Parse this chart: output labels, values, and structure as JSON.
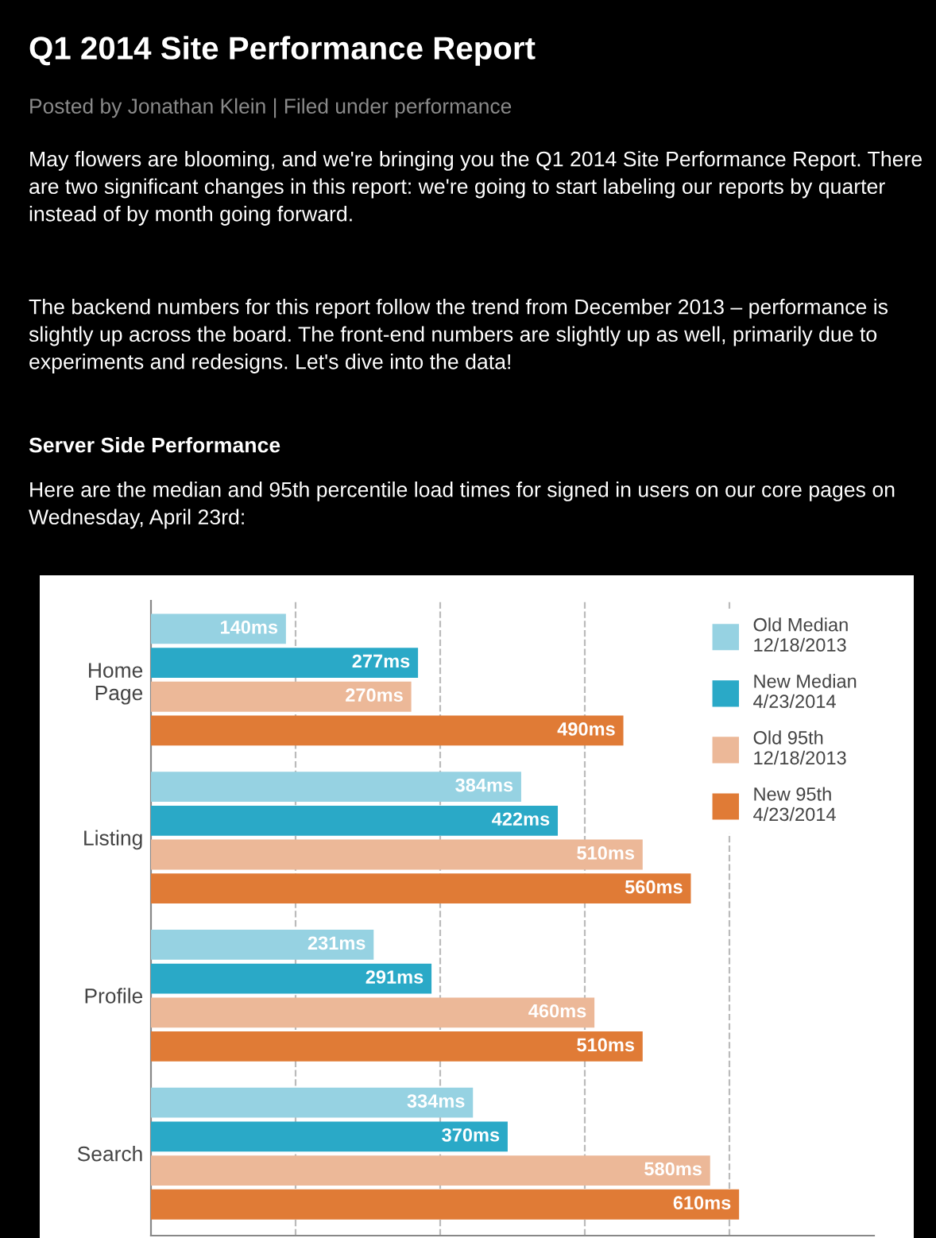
{
  "chart_data": {
    "type": "bar",
    "orientation": "horizontal",
    "title": "Q1 2014 Site Performance Report",
    "subtitle": "Posted by Jonathan Klein | Filed under performance",
    "annotations": [
      "May flowers are blooming, and we're bringing you the Q1 2014 Site Performance Report. There are two significant changes in this report: we're going to start labeling our reports by quarter instead of by month going forward.",
      "The backend numbers for this report follow the trend from December 2013 – performance is slightly up across the board. The front-end numbers are slightly up as well, primarily due to experiments and redesigns. Let's dive into the data!",
      "Server Side Performance",
      "Here are the median and 95th percentile load times for signed in users on our core pages on Wednesday, April 23rd:"
    ],
    "categories": [
      "Home\nPage",
      "Listing",
      "Profile",
      "Search"
    ],
    "series": [
      {
        "name": "Old Median\n12/18/2013",
        "color": "#96d2e2",
        "values": [
          140,
          384,
          231,
          334
        ],
        "value_labels": [
          "140ms",
          "384ms",
          "231ms",
          "334ms"
        ]
      },
      {
        "name": "New Median\n4/23/2014",
        "color": "#2aa9c7",
        "values": [
          277,
          422,
          291,
          370
        ],
        "value_labels": [
          "277ms",
          "422ms",
          "291ms",
          "370ms"
        ]
      },
      {
        "name": "Old 95th\n12/18/2013",
        "color": "#ecb898",
        "values": [
          270,
          510,
          460,
          580
        ],
        "value_labels": [
          "270ms",
          "510ms",
          "460ms",
          "580ms"
        ]
      },
      {
        "name": "New 95th\n4/23/2014",
        "color": "#e07b36",
        "values": [
          490,
          560,
          510,
          610
        ],
        "value_labels": [
          "490ms",
          "560ms",
          "510ms",
          "610ms"
        ]
      }
    ],
    "xlim": [
      0,
      750
    ],
    "xticks": [
      {
        "value": 150,
        "label": null
      },
      {
        "value": 300,
        "label": null
      },
      {
        "value": 450,
        "label": null
      },
      {
        "value": 600,
        "label": null
      }
    ],
    "tick_labels": "y",
    "grid": "x",
    "line_style": "dashed",
    "legend": "top right"
  }
}
